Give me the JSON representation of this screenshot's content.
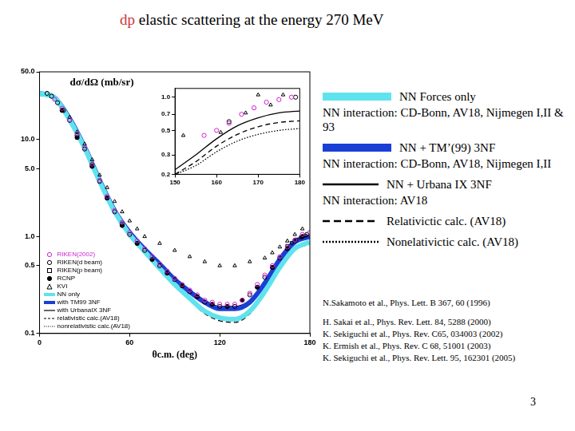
{
  "slide": {
    "title": {
      "highlight": "dp",
      "highlight_color": "#d0343a",
      "text": "elastic scattering at the energy 270 MeV"
    },
    "legend_panel": [
      {
        "label": "NN Forces only",
        "color": "#5fe3ee",
        "line_style": "band",
        "note": "NN interaction: CD-Bonn, AV18, Nijmegen I,II & 93"
      },
      {
        "label": "NN + TM’(99) 3NF",
        "color": "#1a3fd6",
        "line_style": "band",
        "note": "NN interaction: CD-Bonn, AV18, Nijmegen I,II"
      },
      {
        "label": "NN + Urbana IX 3NF",
        "color": "#000000",
        "line_style": "solid",
        "note": "NN interaction: AV18"
      },
      {
        "label": "Relativictic calc. (AV18)",
        "color": "#000000",
        "line_style": "dashed"
      },
      {
        "label": "Nonelativictic calc. (AV18)",
        "color": "#000000",
        "line_style": "dotted"
      }
    ],
    "references": [
      [
        "N.Sakamoto et al., Phys. Lett. B 367, 60 (1996)"
      ],
      [
        "H. Sakai et al., Phys. Rev. Lett. 84, 5288 (2000)",
        "K. Sekiguchi et al., Phys. Rev. C65, 034003 (2002)",
        "K. Ermish et al., Phys. Rev. C 68, 51001 (2003)",
        "K. Sekiguchi et al., Phys. Rev. Lett. 95, 162301 (2005)"
      ]
    ],
    "page": "3"
  },
  "chart_data": [
    {
      "type": "scatter",
      "y_label": "dσ/dΩ (mb/sr)",
      "x_label": "θc.m. (deg)",
      "xlim": [
        0,
        180
      ],
      "xticks": [
        0,
        60,
        120,
        180
      ],
      "ylim": [
        0.1,
        50
      ],
      "yticks": [
        0.1,
        0.5,
        {
          "value": 1,
          "label": "1.0"
        },
        {
          "value": 5,
          "label": "5.0"
        },
        {
          "value": 10,
          "label": "10.0"
        },
        {
          "value": 50,
          "label": "50.0"
        }
      ],
      "log": "y",
      "grid": false,
      "legend": "lower left",
      "series": [
        {
          "name": "RIKEN(2002)",
          "type": "scatter",
          "color": "#d020d0",
          "marker": "circle",
          "x": [
            10,
            15,
            20,
            25,
            30,
            35,
            40,
            45,
            50,
            55,
            60,
            65,
            70,
            75,
            80,
            85,
            90,
            95,
            100,
            105,
            110,
            115,
            120,
            125,
            130,
            135,
            140,
            145,
            150,
            155,
            160,
            165,
            170,
            175,
            180
          ],
          "values": [
            26,
            21,
            16,
            11.5,
            8.3,
            5.6,
            3.8,
            2.6,
            1.85,
            1.4,
            1.1,
            0.9,
            0.75,
            0.62,
            0.52,
            0.44,
            0.37,
            0.32,
            0.28,
            0.25,
            0.22,
            0.21,
            0.2,
            0.2,
            0.2,
            0.22,
            0.26,
            0.32,
            0.4,
            0.5,
            0.62,
            0.78,
            0.92,
            1.05,
            1.1
          ]
        },
        {
          "name": "RIKEN(d beam)",
          "type": "scatter",
          "color": "#000000",
          "marker": "circle",
          "x": [
            5,
            8,
            12,
            16,
            20,
            25,
            30,
            35,
            40,
            45,
            50,
            55,
            60,
            70,
            80,
            90,
            100,
            110,
            120,
            130,
            140,
            150,
            160,
            170,
            178
          ],
          "values": [
            30,
            28,
            24,
            20,
            15.8,
            11,
            8.0,
            5.5,
            3.7,
            2.5,
            1.8,
            1.35,
            1.05,
            0.72,
            0.5,
            0.36,
            0.27,
            0.21,
            0.19,
            0.19,
            0.25,
            0.38,
            0.6,
            0.9,
            1.05
          ]
        },
        {
          "name": "RIKEN(p beam)",
          "type": "scatter",
          "color": "#000000",
          "marker": "square",
          "x": [
            165,
            168,
            171,
            174,
            177
          ],
          "values": [
            0.8,
            0.86,
            0.93,
            0.98,
            1.02
          ]
        },
        {
          "name": "RCNP",
          "type": "scatter",
          "color": "#000000",
          "marker": "filled_circle",
          "x": [
            15,
            25,
            35,
            45,
            55,
            65,
            75,
            85,
            95,
            105,
            115,
            125,
            135,
            145,
            155,
            165,
            175
          ],
          "values": [
            20,
            10.5,
            5.3,
            2.5,
            1.3,
            0.85,
            0.58,
            0.42,
            0.31,
            0.24,
            0.2,
            0.19,
            0.22,
            0.3,
            0.48,
            0.75,
            1.0
          ]
        },
        {
          "name": "KVI",
          "type": "scatter",
          "color": "#000000",
          "marker": "triangle",
          "x": [
            20,
            25,
            30,
            35,
            40,
            45,
            50,
            55,
            60,
            65,
            70,
            80,
            90,
            100,
            110,
            120,
            130,
            140,
            150,
            155,
            160,
            165,
            170,
            175
          ],
          "values": [
            17,
            12,
            9,
            6.2,
            4.3,
            3.2,
            2.3,
            1.8,
            1.45,
            1.2,
            1.0,
            0.85,
            0.72,
            0.62,
            0.55,
            0.5,
            0.5,
            0.55,
            0.6,
            0.68,
            0.78,
            0.9,
            1.05,
            1.2
          ]
        },
        {
          "name": "NN only",
          "type": "line",
          "color": "#5fe3ee",
          "line_style": "band",
          "x": [
            0,
            10,
            20,
            30,
            40,
            50,
            60,
            70,
            80,
            90,
            100,
            110,
            120,
            130,
            140,
            150,
            160,
            170,
            180
          ],
          "values": [
            30,
            27,
            16,
            8.2,
            3.7,
            1.8,
            1.05,
            0.7,
            0.47,
            0.32,
            0.23,
            0.17,
            0.145,
            0.14,
            0.17,
            0.27,
            0.48,
            0.75,
            0.88
          ]
        },
        {
          "name": "with TM99 3NF",
          "type": "line",
          "color": "#1a3fd6",
          "line_style": "band",
          "x": [
            0,
            10,
            20,
            30,
            40,
            50,
            60,
            70,
            80,
            90,
            100,
            110,
            120,
            130,
            140,
            150,
            160,
            170,
            180
          ],
          "values": [
            30,
            27,
            16.5,
            8.4,
            3.8,
            1.85,
            1.1,
            0.74,
            0.52,
            0.36,
            0.27,
            0.21,
            0.18,
            0.18,
            0.21,
            0.33,
            0.58,
            0.88,
            1.0
          ]
        },
        {
          "name": "with UrbanaIX 3NF",
          "type": "line",
          "color": "#000000",
          "line_style": "solid",
          "x": [
            0,
            10,
            20,
            30,
            40,
            50,
            60,
            70,
            80,
            90,
            100,
            110,
            120,
            130,
            140,
            150,
            160,
            170,
            180
          ],
          "values": [
            30.5,
            27.5,
            16.6,
            8.4,
            3.8,
            1.86,
            1.1,
            0.75,
            0.52,
            0.37,
            0.28,
            0.22,
            0.19,
            0.19,
            0.22,
            0.34,
            0.58,
            0.87,
            0.98
          ]
        },
        {
          "name": "relativistic calc.(AV18)",
          "type": "line",
          "color": "#000000",
          "line_style": "dashed",
          "x": [
            0,
            10,
            20,
            30,
            40,
            50,
            60,
            70,
            80,
            90,
            100,
            110,
            120,
            130,
            140,
            150,
            160,
            170,
            180
          ],
          "values": [
            29,
            26,
            15.5,
            8.0,
            3.6,
            1.75,
            1.02,
            0.68,
            0.46,
            0.31,
            0.22,
            0.16,
            0.135,
            0.13,
            0.16,
            0.26,
            0.46,
            0.72,
            0.84
          ]
        },
        {
          "name": "nonrelativistic calc.(AV18)",
          "type": "line",
          "color": "#000000",
          "line_style": "dotted",
          "x": [
            0,
            10,
            20,
            30,
            40,
            50,
            60,
            70,
            80,
            90,
            100,
            110,
            120,
            130,
            140,
            150,
            160,
            170,
            180
          ],
          "values": [
            29.5,
            26.5,
            15.8,
            8.1,
            3.65,
            1.78,
            1.04,
            0.69,
            0.47,
            0.32,
            0.23,
            0.17,
            0.14,
            0.135,
            0.165,
            0.27,
            0.47,
            0.74,
            0.86
          ]
        }
      ]
    },
    {
      "type": "scatter",
      "xlim": [
        150,
        180
      ],
      "xticks": [
        150,
        160,
        170,
        180
      ],
      "ylim": [
        0.2,
        1.2
      ],
      "yticks": [
        0.2,
        0.3,
        0.5,
        0.7,
        {
          "value": 1,
          "label": "1.0"
        }
      ],
      "log": "y",
      "grid": false,
      "series": [
        {
          "name": "RIKEN(2002)",
          "type": "scatter",
          "color": "#d020d0",
          "marker": "circle",
          "x": [
            157,
            160,
            163,
            166,
            169,
            172,
            175,
            178
          ],
          "values": [
            0.45,
            0.5,
            0.58,
            0.7,
            0.8,
            0.9,
            0.95,
            1.0
          ]
        },
        {
          "name": "RIKEN(d beam)",
          "type": "scatter",
          "color": "#000000",
          "marker": "circle",
          "x": [
            163,
            179
          ],
          "values": [
            0.6,
            1.0
          ]
        },
        {
          "name": "KVI",
          "type": "scatter",
          "color": "#000000",
          "marker": "triangle",
          "x": [
            152,
            161,
            167,
            170,
            173,
            176
          ],
          "values": [
            0.45,
            0.48,
            0.72,
            1.05,
            0.85,
            1.05
          ]
        },
        {
          "name": "with UrbanaIX 3NF",
          "type": "line",
          "color": "#000000",
          "line_style": "solid",
          "x": [
            150,
            155,
            160,
            165,
            170,
            175,
            180
          ],
          "values": [
            0.22,
            0.3,
            0.42,
            0.55,
            0.65,
            0.72,
            0.75
          ]
        },
        {
          "name": "relativistic calc.(AV18)",
          "type": "line",
          "color": "#000000",
          "line_style": "dashed",
          "x": [
            150,
            155,
            160,
            165,
            170,
            175,
            180
          ],
          "values": [
            0.2,
            0.26,
            0.36,
            0.46,
            0.54,
            0.59,
            0.61
          ]
        },
        {
          "name": "nonrelativistic calc.(AV18)",
          "type": "line",
          "color": "#000000",
          "line_style": "dotted",
          "x": [
            150,
            155,
            160,
            165,
            170,
            175,
            180
          ],
          "values": [
            0.2,
            0.24,
            0.32,
            0.4,
            0.46,
            0.5,
            0.52
          ]
        }
      ]
    }
  ]
}
